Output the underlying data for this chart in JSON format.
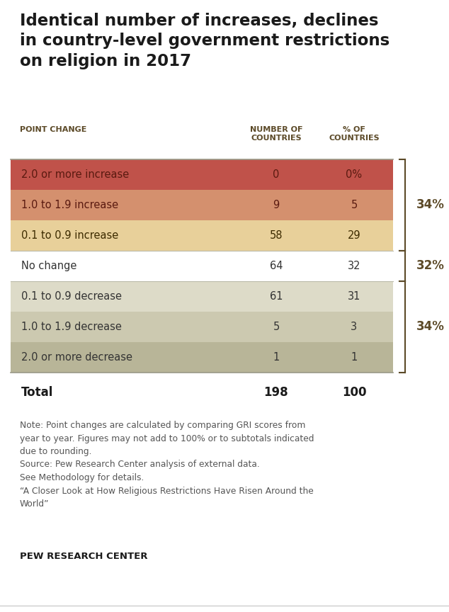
{
  "title": "Identical number of increases, declines\nin country-level government restrictions\non religion in 2017",
  "col_headers": [
    "POINT CHANGE",
    "NUMBER OF\nCOUNTRIES",
    "% OF\nCOUNTRIES"
  ],
  "rows": [
    {
      "label": "2.0 or more increase",
      "num": "0",
      "pct": "0%",
      "bg": "#c0524a",
      "text_color": "#5a1a10"
    },
    {
      "label": "1.0 to 1.9 increase",
      "num": "9",
      "pct": "5",
      "bg": "#d4906e",
      "text_color": "#5a1a10"
    },
    {
      "label": "0.1 to 0.9 increase",
      "num": "58",
      "pct": "29",
      "bg": "#e8d09a",
      "text_color": "#3d2b00"
    },
    {
      "label": "No change",
      "num": "64",
      "pct": "32",
      "bg": "#ffffff",
      "text_color": "#333333"
    },
    {
      "label": "0.1 to 0.9 decrease",
      "num": "61",
      "pct": "31",
      "bg": "#dddbc8",
      "text_color": "#333333"
    },
    {
      "label": "1.0 to 1.9 decrease",
      "num": "5",
      "pct": "3",
      "bg": "#ccc9b0",
      "text_color": "#333333"
    },
    {
      "label": "2.0 or more decrease",
      "num": "1",
      "pct": "1",
      "bg": "#b8b598",
      "text_color": "#333333"
    }
  ],
  "total_row": {
    "label": "Total",
    "num": "198",
    "pct": "100"
  },
  "brackets": [
    {
      "rows": [
        0,
        1,
        2
      ],
      "label": "34%"
    },
    {
      "rows": [
        3
      ],
      "label": "32%"
    },
    {
      "rows": [
        4,
        5,
        6
      ],
      "label": "34%"
    }
  ],
  "note_text": "Note: Point changes are calculated by comparing GRI scores from\nyear to year. Figures may not add to 100% or to subtotals indicated\ndue to rounding.\nSource: Pew Research Center analysis of external data.\nSee Methodology for details.\n“A Closer Look at How Religious Restrictions Have Risen Around the\nWorld”",
  "footer": "PEW RESEARCH CENTER",
  "bg_color": "#ffffff",
  "title_color": "#1a1a1a",
  "header_color": "#5c4a28",
  "bracket_color": "#5c4a28",
  "separator_color": "#bbbbaa",
  "line_color": "#999988"
}
